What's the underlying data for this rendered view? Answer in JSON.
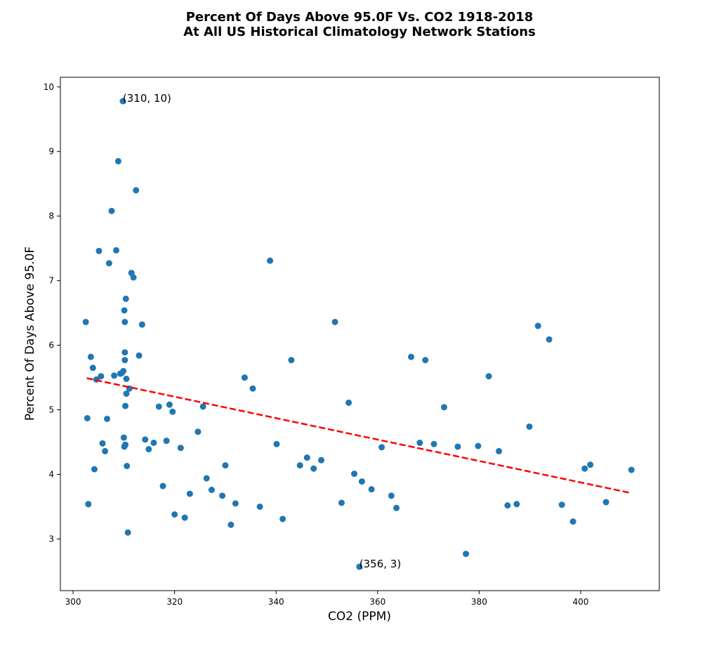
{
  "chart_data": {
    "type": "scatter",
    "title": "Percent Of Days Above 95.0F Vs. CO2 1918-2018",
    "subtitle": "At All US Historical Climatology Network Stations",
    "xlabel": "CO2 (PPM)",
    "ylabel": "Percent Of Days Above 95.0F",
    "xlim": [
      297.5,
      415.5
    ],
    "ylim": [
      2.2,
      10.15
    ],
    "xticks": [
      300,
      320,
      340,
      360,
      380,
      400
    ],
    "yticks": [
      3,
      4,
      5,
      6,
      7,
      8,
      9,
      10
    ],
    "grid": false,
    "marker_color": "#1f77b4",
    "trendline": {
      "style": "dashed",
      "color": "#ff0000",
      "x": [
        302.7,
        410.0
      ],
      "y": [
        5.49,
        3.71
      ]
    },
    "annotations": [
      {
        "text": "(310, 10)",
        "x": 309.8,
        "y": 9.78
      },
      {
        "text": "(356, 3)",
        "x": 356.4,
        "y": 2.57
      }
    ],
    "points": [
      [
        302.5,
        6.36
      ],
      [
        302.8,
        4.87
      ],
      [
        303.0,
        3.54
      ],
      [
        303.5,
        5.82
      ],
      [
        303.9,
        5.65
      ],
      [
        304.2,
        4.08
      ],
      [
        304.6,
        5.47
      ],
      [
        305.1,
        7.46
      ],
      [
        305.5,
        5.52
      ],
      [
        305.8,
        4.48
      ],
      [
        306.3,
        4.36
      ],
      [
        306.7,
        4.86
      ],
      [
        307.1,
        7.27
      ],
      [
        307.6,
        8.08
      ],
      [
        308.1,
        5.53
      ],
      [
        308.5,
        7.47
      ],
      [
        308.9,
        8.85
      ],
      [
        309.3,
        5.56
      ],
      [
        309.6,
        5.57
      ],
      [
        309.8,
        9.78
      ],
      [
        309.9,
        5.6
      ],
      [
        310.0,
        4.57
      ],
      [
        310.1,
        4.43
      ],
      [
        310.1,
        6.54
      ],
      [
        310.2,
        6.36
      ],
      [
        310.2,
        5.89
      ],
      [
        310.2,
        5.77
      ],
      [
        310.3,
        4.46
      ],
      [
        310.3,
        5.06
      ],
      [
        310.4,
        6.72
      ],
      [
        310.5,
        5.25
      ],
      [
        310.5,
        5.48
      ],
      [
        310.6,
        4.13
      ],
      [
        310.8,
        3.1
      ],
      [
        311.1,
        5.33
      ],
      [
        311.5,
        7.12
      ],
      [
        311.9,
        7.05
      ],
      [
        312.4,
        8.4
      ],
      [
        313.0,
        5.84
      ],
      [
        313.6,
        6.32
      ],
      [
        314.2,
        4.54
      ],
      [
        314.9,
        4.39
      ],
      [
        315.9,
        4.49
      ],
      [
        316.9,
        5.05
      ],
      [
        317.7,
        3.82
      ],
      [
        318.4,
        4.52
      ],
      [
        319.0,
        5.08
      ],
      [
        319.6,
        4.97
      ],
      [
        320.0,
        3.38
      ],
      [
        321.2,
        4.41
      ],
      [
        322.0,
        3.33
      ],
      [
        323.0,
        3.7
      ],
      [
        324.6,
        4.66
      ],
      [
        325.6,
        5.05
      ],
      [
        326.3,
        3.94
      ],
      [
        327.3,
        3.76
      ],
      [
        329.4,
        3.67
      ],
      [
        330.0,
        4.14
      ],
      [
        331.1,
        3.22
      ],
      [
        332.0,
        3.55
      ],
      [
        333.8,
        5.5
      ],
      [
        335.4,
        5.33
      ],
      [
        336.8,
        3.5
      ],
      [
        338.8,
        7.31
      ],
      [
        340.1,
        4.47
      ],
      [
        341.3,
        3.31
      ],
      [
        343.0,
        5.77
      ],
      [
        344.7,
        4.14
      ],
      [
        346.1,
        4.26
      ],
      [
        347.4,
        4.09
      ],
      [
        348.9,
        4.22
      ],
      [
        351.6,
        6.36
      ],
      [
        352.9,
        3.56
      ],
      [
        354.3,
        5.11
      ],
      [
        355.4,
        4.01
      ],
      [
        356.4,
        2.57
      ],
      [
        356.9,
        3.89
      ],
      [
        358.8,
        3.77
      ],
      [
        360.8,
        4.42
      ],
      [
        362.7,
        3.67
      ],
      [
        363.7,
        3.48
      ],
      [
        366.6,
        5.82
      ],
      [
        368.3,
        4.49
      ],
      [
        369.4,
        5.77
      ],
      [
        371.1,
        4.47
      ],
      [
        373.1,
        5.04
      ],
      [
        375.8,
        4.43
      ],
      [
        377.4,
        2.77
      ],
      [
        379.8,
        4.44
      ],
      [
        381.9,
        5.52
      ],
      [
        383.9,
        4.36
      ],
      [
        385.6,
        3.52
      ],
      [
        387.4,
        3.54
      ],
      [
        389.9,
        4.74
      ],
      [
        391.6,
        6.3
      ],
      [
        393.8,
        6.09
      ],
      [
        396.3,
        3.53
      ],
      [
        398.5,
        3.27
      ],
      [
        400.8,
        4.09
      ],
      [
        401.9,
        4.15
      ],
      [
        405.0,
        3.57
      ],
      [
        410.0,
        4.07
      ]
    ]
  }
}
